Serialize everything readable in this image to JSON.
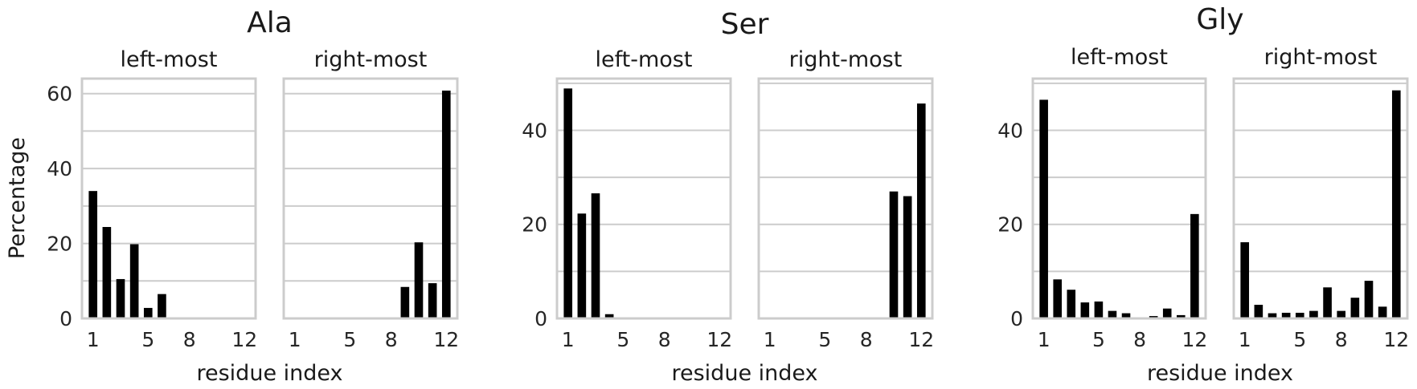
{
  "chart_data": {
    "type": "bar",
    "ylabel": "Percentage",
    "groups": [
      {
        "title": "Ala",
        "xlabel": "residue index",
        "ylim": [
          0,
          64
        ],
        "yticks": [
          0,
          20,
          40,
          60
        ],
        "panels": [
          {
            "title": "left-most",
            "xticks": [
              "1",
              "5",
              "8",
              "12"
            ],
            "categories": [
              1,
              2,
              3,
              4,
              5,
              6,
              7,
              8,
              9,
              10,
              11,
              12
            ],
            "values": [
              34,
              24.4,
              10.5,
              19.8,
              2.8,
              6.5,
              0,
              0,
              0,
              0,
              0,
              0
            ]
          },
          {
            "title": "right-most",
            "xticks": [
              "1",
              "5",
              "8",
              "12"
            ],
            "categories": [
              1,
              2,
              3,
              4,
              5,
              6,
              7,
              8,
              9,
              10,
              11,
              12
            ],
            "values": [
              0,
              0,
              0,
              0,
              0,
              0,
              0,
              0,
              8.4,
              20.3,
              9.4,
              60.8
            ]
          }
        ]
      },
      {
        "title": "Ser",
        "xlabel": "residue index",
        "ylim": [
          0,
          51
        ],
        "yticks": [
          0,
          20,
          40
        ],
        "panels": [
          {
            "title": "left-most",
            "xticks": [
              "1",
              "5",
              "8",
              "12"
            ],
            "categories": [
              1,
              2,
              3,
              4,
              5,
              6,
              7,
              8,
              9,
              10,
              11,
              12
            ],
            "values": [
              48.9,
              22.3,
              26.6,
              0.9,
              0,
              0,
              0,
              0,
              0,
              0,
              0,
              0
            ]
          },
          {
            "title": "right-most",
            "xticks": [
              "1",
              "5",
              "8",
              "12"
            ],
            "categories": [
              1,
              2,
              3,
              4,
              5,
              6,
              7,
              8,
              9,
              10,
              11,
              12
            ],
            "values": [
              0,
              0,
              0,
              0,
              0,
              0,
              0,
              0,
              0,
              27,
              26,
              45.7
            ]
          }
        ]
      },
      {
        "title": "Gly",
        "xlabel": "residue index",
        "ylim": [
          0,
          51
        ],
        "yticks": [
          0,
          20,
          40
        ],
        "panels": [
          {
            "title": "left-most",
            "xticks": [
              "1",
              "5",
              "8",
              "12"
            ],
            "categories": [
              1,
              2,
              3,
              4,
              5,
              6,
              7,
              8,
              9,
              10,
              11,
              12
            ],
            "values": [
              46.5,
              8.3,
              6.1,
              3.4,
              3.6,
              1.6,
              1.1,
              0,
              0.5,
              2.1,
              0.7,
              22.2
            ]
          },
          {
            "title": "right-most",
            "xticks": [
              "1",
              "5",
              "8",
              "12"
            ],
            "categories": [
              1,
              2,
              3,
              4,
              5,
              6,
              7,
              8,
              9,
              10,
              11,
              12
            ],
            "values": [
              16.2,
              2.9,
              1.1,
              1.2,
              1.2,
              1.6,
              6.6,
              1.6,
              4.4,
              8.0,
              2.5,
              48.5
            ]
          }
        ]
      }
    ],
    "colors": {
      "bar": "#000000",
      "frame": "#cccccc",
      "grid": "#cccccc"
    },
    "grid": true
  }
}
